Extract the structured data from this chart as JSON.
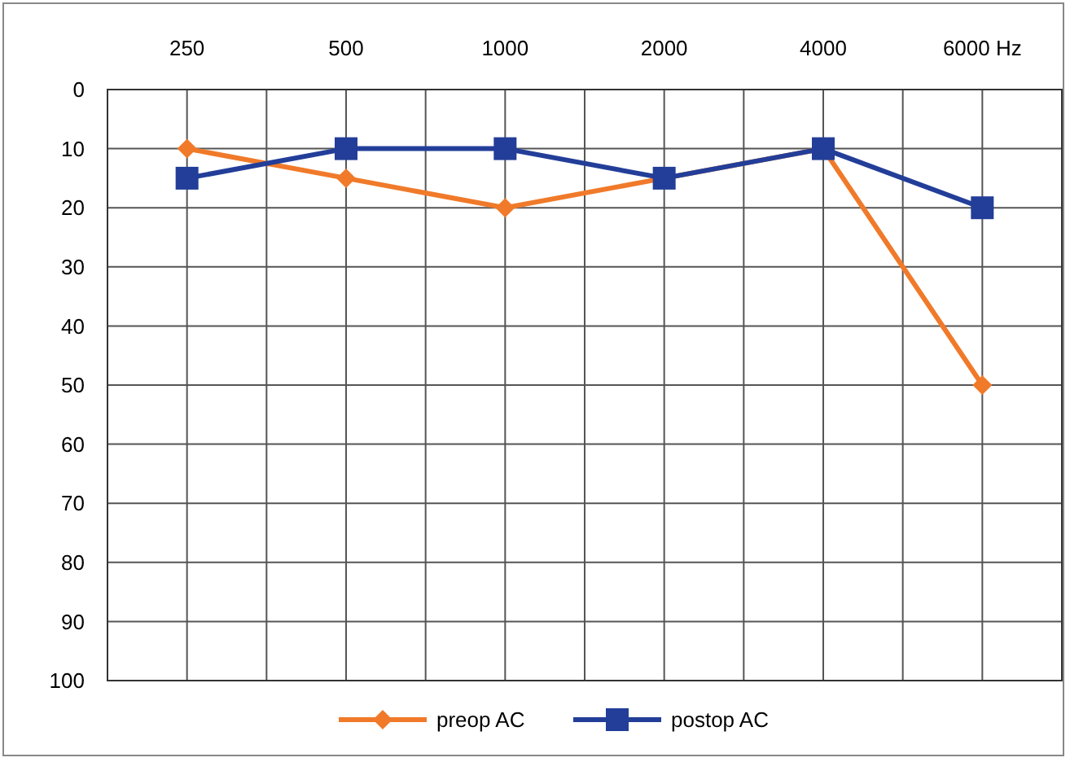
{
  "chart_data": {
    "type": "line",
    "categories": [
      "250",
      "500",
      "1000",
      "2000",
      "4000",
      "6000 Hz"
    ],
    "series": [
      {
        "name": "preop AC",
        "color": "#f07a2a",
        "values": [
          10,
          15,
          20,
          15,
          10,
          50
        ],
        "marker": "diamond"
      },
      {
        "name": "postop AC",
        "color": "#233e99",
        "values": [
          15,
          10,
          10,
          15,
          10,
          20
        ],
        "marker": "square"
      }
    ],
    "ylim": [
      100,
      0
    ],
    "yticks": [
      0,
      10,
      20,
      30,
      40,
      50,
      60,
      70,
      80,
      90,
      100
    ],
    "grid": true,
    "legend": "bottom",
    "line_style": "solid"
  }
}
